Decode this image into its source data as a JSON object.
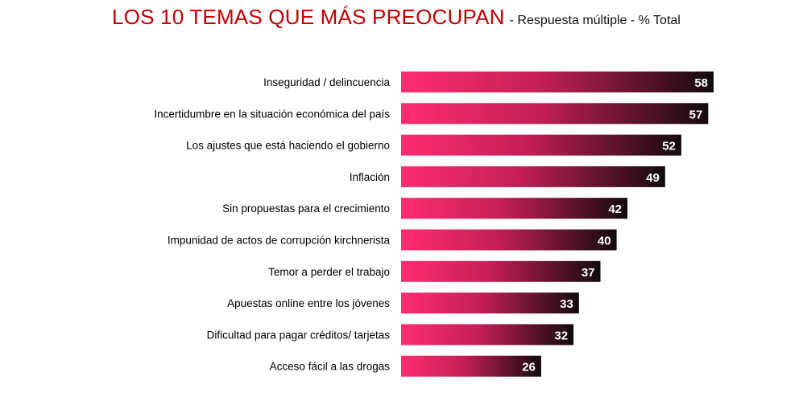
{
  "header": {
    "title": "LOS 10 TEMAS QUE MÁS PREOCUPAN",
    "subtitle": "- Respuesta múltiple - % Total"
  },
  "colors": {
    "title": "#c00000",
    "bar_start": "#ff2d6f",
    "bar_mid": "#c41f55",
    "bar_end": "#120a0c"
  },
  "chart_data": {
    "type": "bar",
    "orientation": "horizontal",
    "title": "LOS 10 TEMAS QUE MÁS PREOCUPAN",
    "subtitle": "- Respuesta múltiple - % Total",
    "categories": [
      "Inseguridad / delincuencia",
      "Incertidumbre en la situación económica del país",
      "Los ajustes que está haciendo el gobierno",
      "Inflación",
      "Sin propuestas para el crecimiento",
      "Impunidad de actos de corrupción kirchnerista",
      "Temor a perder el trabajo",
      "Apuestas online entre los jóvenes",
      "Dificultad para pagar créditos/ tarjetas",
      "Acceso fácil a las drogas"
    ],
    "values": [
      58,
      57,
      52,
      49,
      42,
      40,
      37,
      33,
      32,
      26
    ],
    "xlim": [
      0,
      58
    ],
    "grid": false,
    "legend": "none"
  }
}
